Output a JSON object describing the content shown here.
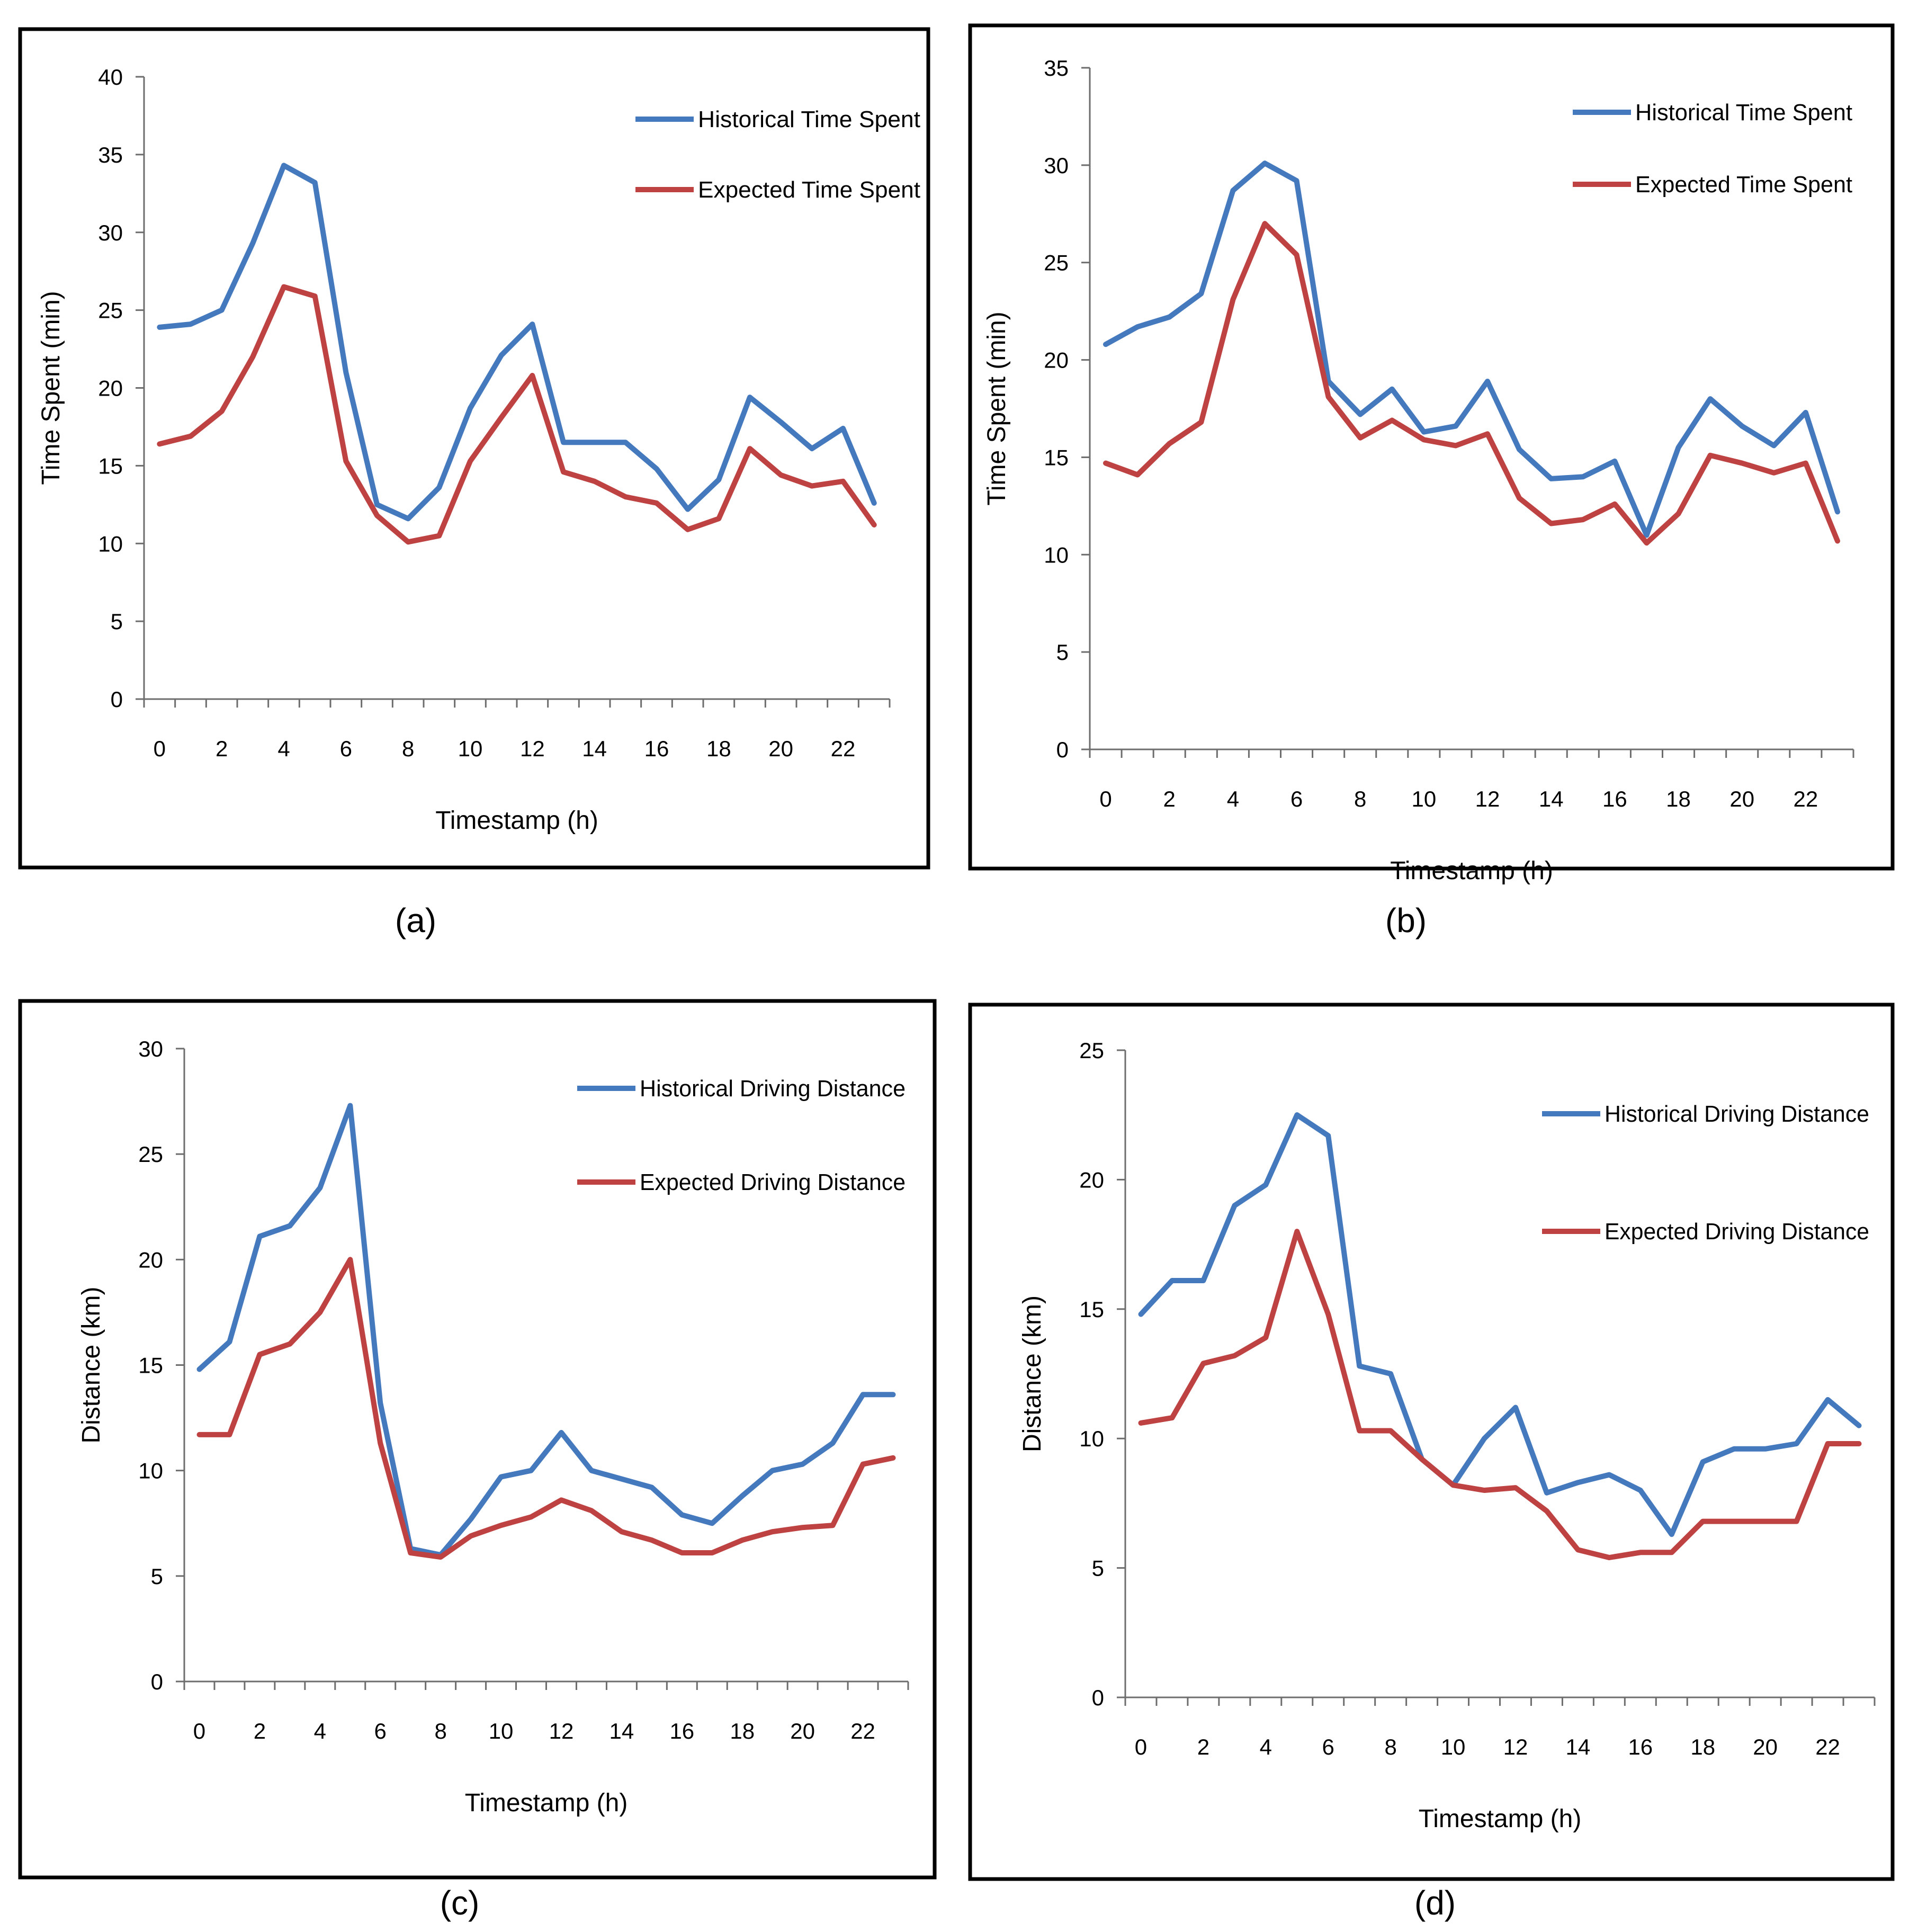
{
  "colors": {
    "historical": "#4579BE",
    "expected": "#BE4242"
  },
  "chart_data": [
    {
      "type": "line",
      "panel_label": "(a)",
      "xlabel": "Timestamp (h)",
      "ylabel": "Time Spent (min)",
      "ylim": [
        0,
        40
      ],
      "yticks": [
        0,
        5,
        10,
        15,
        20,
        25,
        30,
        35,
        40
      ],
      "xticks": [
        0,
        2,
        4,
        6,
        8,
        10,
        12,
        14,
        16,
        18,
        20,
        22
      ],
      "x": [
        0,
        1,
        2,
        3,
        4,
        5,
        6,
        7,
        8,
        9,
        10,
        11,
        12,
        13,
        14,
        15,
        16,
        17,
        18,
        19,
        20,
        21,
        22,
        23
      ],
      "legend_position": "top-right",
      "series": [
        {
          "name": "Historical Time Spent",
          "color_key": "historical",
          "values": [
            23.9,
            24.1,
            25.0,
            29.3,
            34.3,
            33.2,
            21.0,
            12.5,
            11.6,
            13.6,
            18.7,
            22.1,
            24.1,
            16.5,
            16.5,
            16.5,
            14.8,
            12.2,
            14.1,
            19.4,
            17.8,
            16.1,
            17.4,
            12.6
          ]
        },
        {
          "name": "Expected Time Spent",
          "color_key": "expected",
          "values": [
            16.4,
            16.9,
            18.5,
            22.0,
            26.5,
            25.9,
            15.3,
            11.8,
            10.1,
            10.5,
            15.3,
            18.1,
            20.8,
            14.6,
            14.0,
            13.0,
            12.6,
            10.9,
            11.6,
            16.1,
            14.4,
            13.7,
            14.0,
            11.2
          ]
        }
      ]
    },
    {
      "type": "line",
      "panel_label": "(b)",
      "xlabel": "Timestamp (h)",
      "ylabel": "Time Spent (min)",
      "ylim": [
        0,
        35
      ],
      "yticks": [
        0,
        5,
        10,
        15,
        20,
        25,
        30,
        35
      ],
      "xticks": [
        0,
        2,
        4,
        6,
        8,
        10,
        12,
        14,
        16,
        18,
        20,
        22
      ],
      "x": [
        0,
        1,
        2,
        3,
        4,
        5,
        6,
        7,
        8,
        9,
        10,
        11,
        12,
        13,
        14,
        15,
        16,
        17,
        18,
        19,
        20,
        21,
        22,
        23
      ],
      "legend_position": "top-right",
      "series": [
        {
          "name": "Historical Time Spent",
          "color_key": "historical",
          "values": [
            20.8,
            21.7,
            22.2,
            23.4,
            28.7,
            30.1,
            29.2,
            18.9,
            17.2,
            18.5,
            16.3,
            16.6,
            18.9,
            15.4,
            13.9,
            14.0,
            14.8,
            11.0,
            15.5,
            18.0,
            16.6,
            15.6,
            17.3,
            12.2
          ]
        },
        {
          "name": "Expected Time Spent",
          "color_key": "expected",
          "values": [
            14.7,
            14.1,
            15.7,
            16.8,
            23.1,
            27.0,
            25.4,
            18.1,
            16.0,
            16.9,
            15.9,
            15.6,
            16.2,
            12.9,
            11.6,
            11.8,
            12.6,
            10.6,
            12.1,
            15.1,
            14.7,
            14.2,
            14.7,
            10.7
          ]
        }
      ]
    },
    {
      "type": "line",
      "panel_label": "(c)",
      "xlabel": "Timestamp (h)",
      "ylabel": "Distance (km)",
      "ylim": [
        0,
        30
      ],
      "yticks": [
        0,
        5,
        10,
        15,
        20,
        25,
        30
      ],
      "xticks": [
        0,
        2,
        4,
        6,
        8,
        10,
        12,
        14,
        16,
        18,
        20,
        22
      ],
      "x": [
        0,
        1,
        2,
        3,
        4,
        5,
        6,
        7,
        8,
        9,
        10,
        11,
        12,
        13,
        14,
        15,
        16,
        17,
        18,
        19,
        20,
        21,
        22,
        23
      ],
      "legend_position": "top-right",
      "series": [
        {
          "name": "Historical Driving Distance",
          "color_key": "historical",
          "values": [
            14.8,
            16.1,
            21.1,
            21.6,
            23.4,
            27.3,
            13.2,
            6.3,
            6.0,
            7.7,
            9.7,
            10.0,
            11.8,
            10.0,
            9.6,
            9.2,
            7.9,
            7.5,
            8.8,
            10.0,
            10.3,
            11.3,
            13.6,
            13.6
          ]
        },
        {
          "name": "Expected Driving Distance",
          "color_key": "expected",
          "values": [
            11.7,
            11.7,
            15.5,
            16.0,
            17.5,
            20.0,
            11.3,
            6.1,
            5.9,
            6.9,
            7.4,
            7.8,
            8.6,
            8.1,
            7.1,
            6.7,
            6.1,
            6.1,
            6.7,
            7.1,
            7.3,
            7.4,
            10.3,
            10.6
          ]
        }
      ]
    },
    {
      "type": "line",
      "panel_label": "(d)",
      "xlabel": "Timestamp (h)",
      "ylabel": "Distance (km)",
      "ylim": [
        0,
        25
      ],
      "yticks": [
        0,
        5,
        10,
        15,
        20,
        25
      ],
      "xticks": [
        0,
        2,
        4,
        6,
        8,
        10,
        12,
        14,
        16,
        18,
        20,
        22
      ],
      "x": [
        0,
        1,
        2,
        3,
        4,
        5,
        6,
        7,
        8,
        9,
        10,
        11,
        12,
        13,
        14,
        15,
        16,
        17,
        18,
        19,
        20,
        21,
        22,
        23
      ],
      "legend_position": "top-right",
      "series": [
        {
          "name": "Historical Driving Distance",
          "color_key": "historical",
          "values": [
            14.8,
            16.1,
            16.1,
            19.0,
            19.8,
            22.5,
            21.7,
            12.8,
            12.5,
            9.2,
            8.2,
            10.0,
            11.2,
            7.9,
            8.3,
            8.6,
            8.0,
            6.3,
            9.1,
            9.6,
            9.6,
            9.8,
            11.5,
            10.5
          ]
        },
        {
          "name": "Expected Driving Distance",
          "color_key": "expected",
          "values": [
            10.6,
            10.8,
            12.9,
            13.2,
            13.9,
            18.0,
            14.8,
            10.3,
            10.3,
            9.2,
            8.2,
            8.0,
            8.1,
            7.2,
            5.7,
            5.4,
            5.6,
            5.6,
            6.8,
            6.8,
            6.8,
            6.8,
            9.8,
            9.8
          ]
        }
      ]
    }
  ]
}
